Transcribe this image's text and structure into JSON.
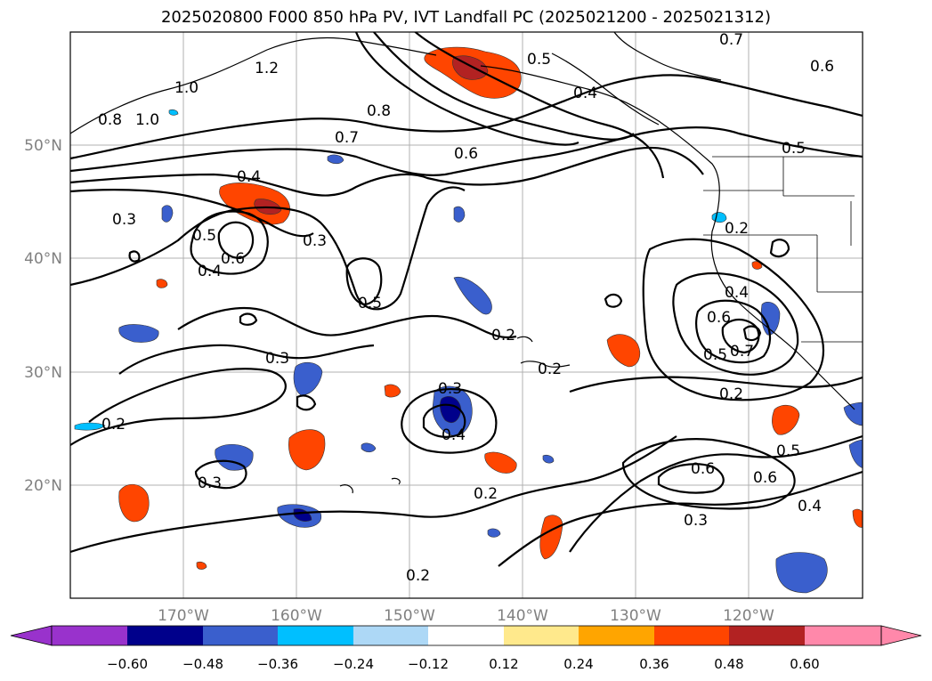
{
  "title": "2025020800 F000 850 hPa PV, IVT Landfall PC (2025021200 - 2025021312)",
  "map": {
    "lon_ticks": [
      "170°W",
      "160°W",
      "150°W",
      "140°W",
      "130°W",
      "120°W"
    ],
    "lat_ticks": [
      "50°N",
      "40°N",
      "30°N",
      "20°N"
    ],
    "contour_labels": [
      "0.7",
      "0.5",
      "0.4",
      "0.8",
      "0.7",
      "0.6",
      "1.0",
      "1.2",
      "1.0",
      "0.8",
      "0.4",
      "0.3",
      "0.5",
      "0.6",
      "0.4",
      "0.3",
      "0.5",
      "0.2",
      "0.3",
      "0.3",
      "0.4",
      "0.2",
      "0.3",
      "0.2",
      "0.6",
      "0.7",
      "0.5",
      "0.4",
      "0.2",
      "0.6",
      "0.6",
      "0.5",
      "0.4",
      "0.3",
      "0.2",
      "0.2",
      "0.2",
      "0.6",
      "0.5"
    ],
    "grid": true,
    "colors": {
      "neg_strong": "#00008b",
      "neg_mid": "#3a5fcd",
      "neg_light": "#00bfff",
      "pos_light": "#ff8c00",
      "pos_mid": "#ff4500",
      "pos_strong": "#b22222"
    }
  },
  "colorbar": {
    "ticks": [
      "−0.60",
      "−0.48",
      "−0.36",
      "−0.24",
      "−0.12",
      "0.12",
      "0.24",
      "0.36",
      "0.48",
      "0.60"
    ],
    "colors": [
      "#9932cc",
      "#00008b",
      "#3a5fcd",
      "#00bfff",
      "#add8f6",
      "#ffffff",
      "#ffe98c",
      "#ffa500",
      "#ff4500",
      "#b22222",
      "#ff88aa"
    ]
  }
}
